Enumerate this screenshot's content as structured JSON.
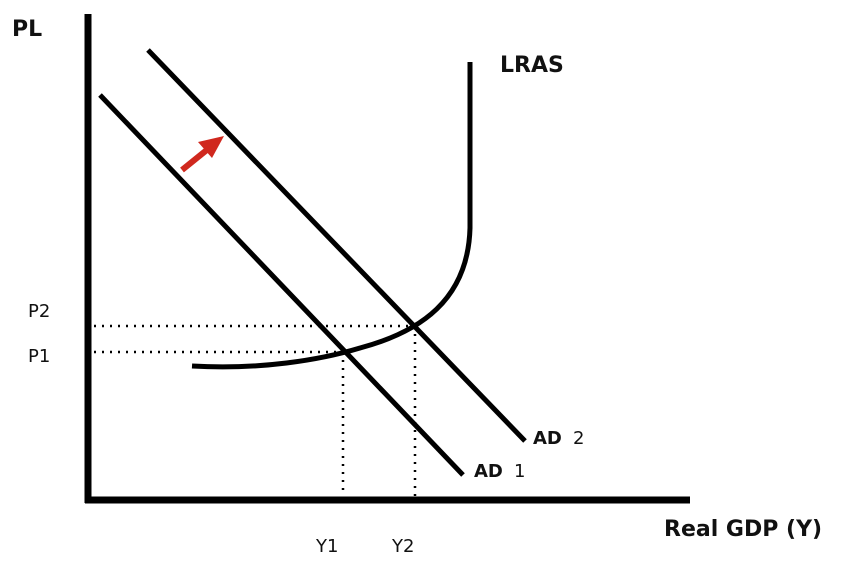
{
  "axes": {
    "y_label": "PL",
    "x_label": "Real GDP (Y)"
  },
  "curves": {
    "lras": "LRAS",
    "ad1": {
      "name": "AD",
      "number": "1"
    },
    "ad2": {
      "name": "AD",
      "number": "2"
    }
  },
  "price_levels": [
    "P2",
    "P1"
  ],
  "output_levels": [
    "Y1",
    "Y2"
  ]
}
